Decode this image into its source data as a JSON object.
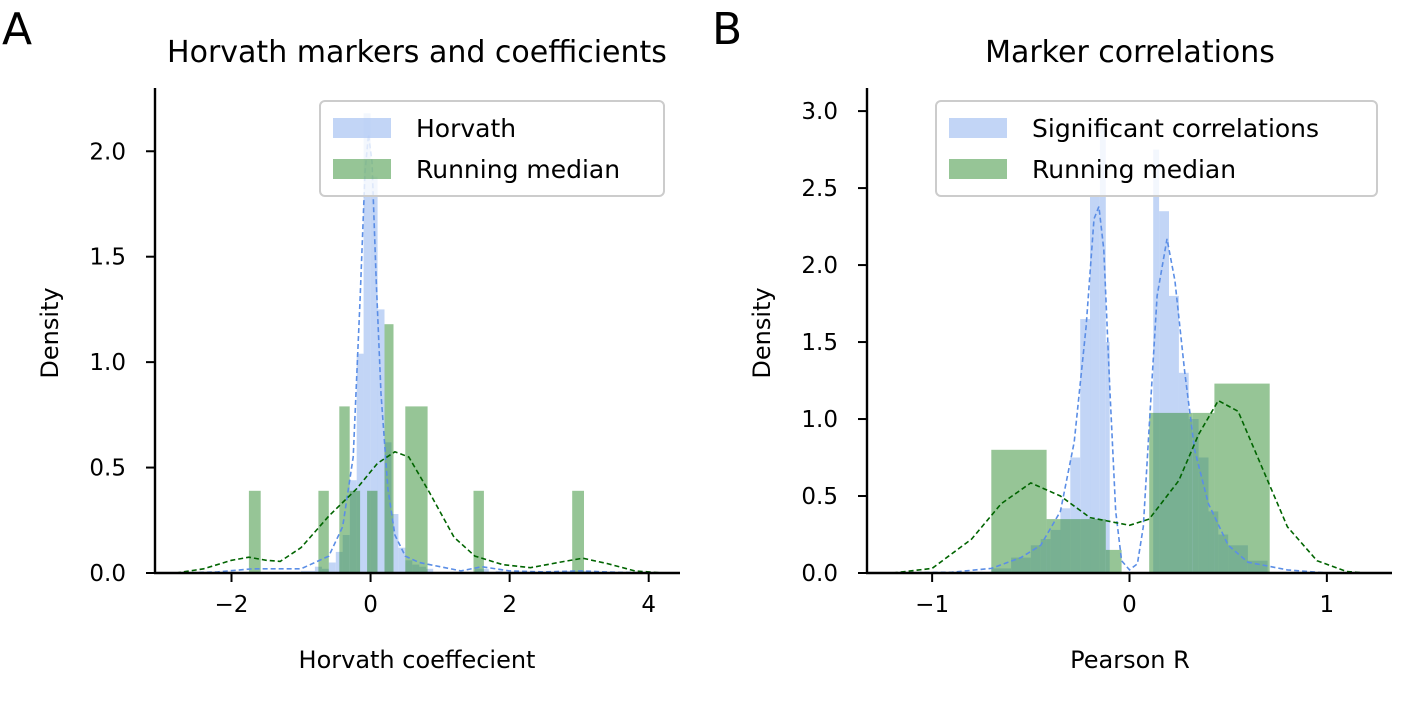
{
  "panels": [
    {
      "letter": "A",
      "title": "Horvath markers and coefficients",
      "xlabel": "Horvath coeffecient",
      "ylabel": "Density"
    },
    {
      "letter": "B",
      "title": "Marker correlations",
      "xlabel": "Pearson R",
      "ylabel": "Density"
    }
  ],
  "chart_data": [
    {
      "type": "bar",
      "title": "Horvath markers and coefficients",
      "xlabel": "Horvath coeffecient",
      "ylabel": "Density",
      "xlim": [
        -3.1,
        4.45
      ],
      "ylim": [
        0,
        2.3
      ],
      "xticks": [
        -2,
        0,
        2,
        4
      ],
      "xtick_labels": [
        "−2",
        "0",
        "2",
        "4"
      ],
      "yticks": [
        0.0,
        0.5,
        1.0,
        1.5,
        2.0
      ],
      "ytick_labels": [
        "0.0",
        "0.5",
        "1.0",
        "1.5",
        "2.0"
      ],
      "legend": {
        "position": "top-right",
        "entries": [
          "Horvath",
          "Running median"
        ]
      },
      "grid": false,
      "series": [
        {
          "name": "Horvath",
          "kind": "histogram",
          "color": "#aec7f3",
          "opacity": 0.75,
          "bins": [
            [
              -1.0,
              -0.9,
              0.01
            ],
            [
              -0.9,
              -0.8,
              0.01
            ],
            [
              -0.8,
              -0.7,
              0.03
            ],
            [
              -0.7,
              -0.6,
              0.02
            ],
            [
              -0.6,
              -0.5,
              0.05
            ],
            [
              -0.5,
              -0.4,
              0.1
            ],
            [
              -0.4,
              -0.3,
              0.18
            ],
            [
              -0.3,
              -0.2,
              0.44
            ],
            [
              -0.2,
              -0.1,
              1.04
            ],
            [
              -0.1,
              0.0,
              2.18
            ],
            [
              0.0,
              0.1,
              1.88
            ],
            [
              0.1,
              0.2,
              1.25
            ],
            [
              0.2,
              0.3,
              0.62
            ],
            [
              0.3,
              0.4,
              0.28
            ],
            [
              0.4,
              0.5,
              0.12
            ],
            [
              0.5,
              0.6,
              0.06
            ],
            [
              0.6,
              0.7,
              0.04
            ],
            [
              0.7,
              0.8,
              0.03
            ],
            [
              0.8,
              0.9,
              0.02
            ],
            [
              1.5,
              1.6,
              0.02
            ],
            [
              1.6,
              1.7,
              0.02
            ],
            [
              1.8,
              1.9,
              0.01
            ],
            [
              2.8,
              2.9,
              0.01
            ],
            [
              3.0,
              3.1,
              0.01
            ]
          ],
          "kde": [
            [
              -2.7,
              0.0
            ],
            [
              -2.2,
              0.005
            ],
            [
              -1.7,
              0.02
            ],
            [
              -1.4,
              0.02
            ],
            [
              -1.0,
              0.02
            ],
            [
              -0.8,
              0.05
            ],
            [
              -0.6,
              0.08
            ],
            [
              -0.4,
              0.22
            ],
            [
              -0.25,
              0.55
            ],
            [
              -0.15,
              1.3
            ],
            [
              -0.08,
              1.9
            ],
            [
              -0.03,
              2.08
            ],
            [
              0.02,
              1.95
            ],
            [
              0.08,
              1.4
            ],
            [
              0.15,
              0.85
            ],
            [
              0.25,
              0.4
            ],
            [
              0.35,
              0.18
            ],
            [
              0.5,
              0.08
            ],
            [
              0.7,
              0.05
            ],
            [
              1.0,
              0.03
            ],
            [
              1.3,
              0.01
            ],
            [
              1.6,
              0.03
            ],
            [
              2.0,
              0.01
            ],
            [
              2.5,
              0.005
            ],
            [
              3.0,
              0.01
            ],
            [
              3.5,
              0.004
            ],
            [
              4.0,
              0.0
            ]
          ]
        },
        {
          "name": "Running median",
          "kind": "histogram",
          "color": "#2e8b2e",
          "opacity": 0.5,
          "bins": [
            [
              -1.75,
              -1.58,
              0.39
            ],
            [
              -0.75,
              -0.6,
              0.39
            ],
            [
              -0.45,
              -0.3,
              0.79
            ],
            [
              -0.3,
              -0.15,
              0.39
            ],
            [
              -0.05,
              0.1,
              0.39
            ],
            [
              0.2,
              0.33,
              1.18
            ],
            [
              0.5,
              0.82,
              0.79
            ],
            [
              1.48,
              1.63,
              0.39
            ],
            [
              2.9,
              3.07,
              0.39
            ]
          ],
          "kde": [
            [
              -2.8,
              0.0
            ],
            [
              -2.4,
              0.02
            ],
            [
              -2.0,
              0.06
            ],
            [
              -1.75,
              0.075
            ],
            [
              -1.5,
              0.06
            ],
            [
              -1.3,
              0.055
            ],
            [
              -1.0,
              0.12
            ],
            [
              -0.6,
              0.27
            ],
            [
              -0.2,
              0.4
            ],
            [
              0.1,
              0.52
            ],
            [
              0.35,
              0.575
            ],
            [
              0.55,
              0.55
            ],
            [
              0.85,
              0.38
            ],
            [
              1.2,
              0.17
            ],
            [
              1.5,
              0.08
            ],
            [
              1.9,
              0.04
            ],
            [
              2.3,
              0.025
            ],
            [
              2.7,
              0.05
            ],
            [
              3.05,
              0.07
            ],
            [
              3.4,
              0.045
            ],
            [
              3.8,
              0.01
            ],
            [
              4.2,
              0.0
            ]
          ]
        }
      ]
    },
    {
      "type": "bar",
      "title": "Marker correlations",
      "xlabel": "Pearson R",
      "ylabel": "Density",
      "xlim": [
        -1.33,
        1.33
      ],
      "ylim": [
        0,
        3.15
      ],
      "xticks": [
        -1,
        0,
        1
      ],
      "xtick_labels": [
        "−1",
        "0",
        "1"
      ],
      "yticks": [
        0.0,
        0.5,
        1.0,
        1.5,
        2.0,
        2.5,
        3.0
      ],
      "ytick_labels": [
        "0.0",
        "0.5",
        "1.0",
        "1.5",
        "2.0",
        "2.5",
        "3.0"
      ],
      "legend": {
        "position": "top-right",
        "entries": [
          "Significant correlations",
          "Running median"
        ]
      },
      "grid": false,
      "series": [
        {
          "name": "Significant correlations",
          "kind": "histogram",
          "color": "#aec7f3",
          "opacity": 0.75,
          "bins": [
            [
              -0.7,
              -0.6,
              0.03
            ],
            [
              -0.6,
              -0.5,
              0.1
            ],
            [
              -0.5,
              -0.45,
              0.18
            ],
            [
              -0.45,
              -0.4,
              0.22
            ],
            [
              -0.4,
              -0.35,
              0.28
            ],
            [
              -0.35,
              -0.3,
              0.42
            ],
            [
              -0.3,
              -0.25,
              0.75
            ],
            [
              -0.25,
              -0.2,
              1.65
            ],
            [
              -0.2,
              -0.15,
              2.45
            ],
            [
              -0.15,
              -0.12,
              2.9
            ],
            [
              -0.12,
              -0.1,
              1.5
            ],
            [
              0.12,
              0.15,
              2.75
            ],
            [
              0.15,
              0.2,
              2.35
            ],
            [
              0.2,
              0.25,
              1.8
            ],
            [
              0.25,
              0.3,
              1.3
            ],
            [
              0.3,
              0.35,
              1.0
            ],
            [
              0.35,
              0.4,
              0.75
            ],
            [
              0.4,
              0.45,
              0.4
            ],
            [
              0.45,
              0.5,
              0.25
            ],
            [
              0.5,
              0.6,
              0.18
            ],
            [
              0.6,
              0.7,
              0.08
            ]
          ],
          "kde": [
            [
              -1.2,
              0.0
            ],
            [
              -0.9,
              0.005
            ],
            [
              -0.7,
              0.03
            ],
            [
              -0.55,
              0.1
            ],
            [
              -0.45,
              0.18
            ],
            [
              -0.35,
              0.4
            ],
            [
              -0.28,
              0.85
            ],
            [
              -0.22,
              1.6
            ],
            [
              -0.18,
              2.3
            ],
            [
              -0.155,
              2.38
            ],
            [
              -0.13,
              2.1
            ],
            [
              -0.1,
              1.2
            ],
            [
              -0.07,
              0.4
            ],
            [
              -0.04,
              0.08
            ],
            [
              0.0,
              0.02
            ],
            [
              0.04,
              0.06
            ],
            [
              0.07,
              0.3
            ],
            [
              0.1,
              0.95
            ],
            [
              0.14,
              1.8
            ],
            [
              0.19,
              2.17
            ],
            [
              0.23,
              1.9
            ],
            [
              0.28,
              1.3
            ],
            [
              0.33,
              0.8
            ],
            [
              0.4,
              0.45
            ],
            [
              0.5,
              0.18
            ],
            [
              0.6,
              0.07
            ],
            [
              0.8,
              0.02
            ],
            [
              1.0,
              0.0
            ]
          ]
        },
        {
          "name": "Running median",
          "kind": "histogram",
          "color": "#2e8b2e",
          "opacity": 0.5,
          "bins": [
            [
              -0.7,
              -0.42,
              0.8
            ],
            [
              -0.42,
              -0.12,
              0.35
            ],
            [
              -0.12,
              -0.04,
              0.15
            ],
            [
              0.1,
              0.32,
              1.04
            ],
            [
              0.32,
              0.43,
              1.04
            ],
            [
              0.43,
              0.71,
              1.23
            ]
          ],
          "kde": [
            [
              -1.2,
              0.0
            ],
            [
              -1.0,
              0.03
            ],
            [
              -0.8,
              0.22
            ],
            [
              -0.65,
              0.45
            ],
            [
              -0.5,
              0.585
            ],
            [
              -0.35,
              0.5
            ],
            [
              -0.2,
              0.36
            ],
            [
              0.0,
              0.31
            ],
            [
              0.1,
              0.35
            ],
            [
              0.25,
              0.6
            ],
            [
              0.35,
              0.9
            ],
            [
              0.45,
              1.12
            ],
            [
              0.55,
              1.05
            ],
            [
              0.65,
              0.75
            ],
            [
              0.8,
              0.3
            ],
            [
              0.95,
              0.08
            ],
            [
              1.1,
              0.01
            ],
            [
              1.2,
              0.0
            ]
          ]
        }
      ]
    }
  ]
}
